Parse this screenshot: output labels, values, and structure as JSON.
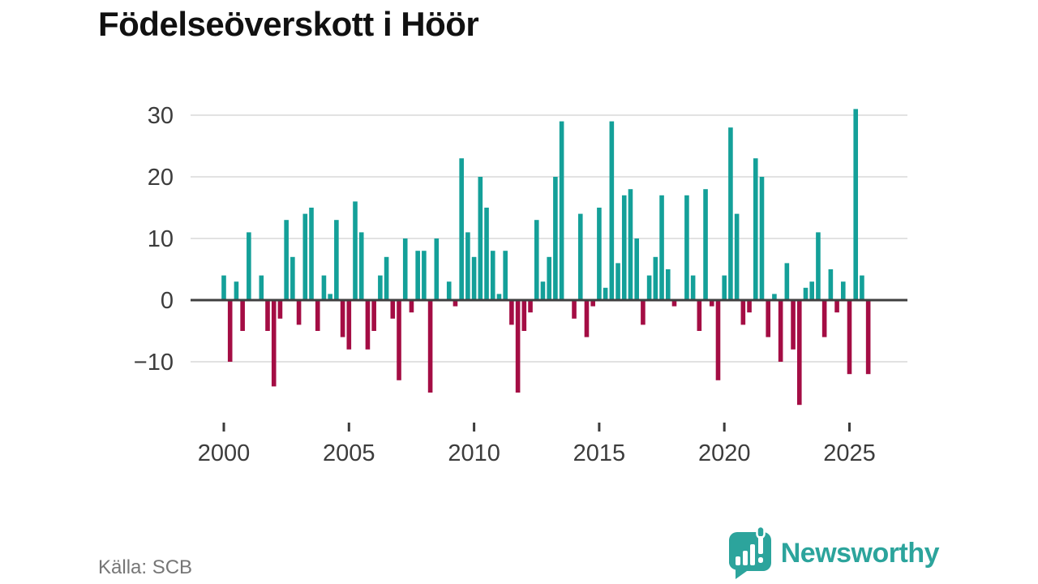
{
  "title": "Födelseöverskott i Höör",
  "source": "Källa: SCB",
  "brand": {
    "name": "Newsworthy",
    "color": "#2ca49c",
    "icon": "speech-bubble-bar-chart-exclamation"
  },
  "chart_data": {
    "type": "bar",
    "title": "Födelseöverskott i Höör",
    "frequency": "quarterly",
    "x_start_year": 2000,
    "x_start_quarter": 1,
    "values": [
      4,
      -10,
      3,
      -5,
      11,
      0,
      4,
      -5,
      -14,
      -3,
      13,
      7,
      -4,
      14,
      15,
      -5,
      4,
      1,
      13,
      -6,
      -8,
      16,
      11,
      -8,
      -5,
      4,
      7,
      -3,
      -13,
      10,
      -2,
      8,
      8,
      -15,
      10,
      0,
      3,
      -1,
      23,
      11,
      7,
      20,
      15,
      8,
      1,
      8,
      -4,
      -15,
      -5,
      -2,
      13,
      3,
      7,
      20,
      29,
      0,
      -3,
      14,
      -6,
      -1,
      15,
      2,
      29,
      6,
      17,
      18,
      10,
      -4,
      4,
      7,
      17,
      5,
      -1,
      0,
      17,
      4,
      -5,
      18,
      -1,
      -13,
      4,
      28,
      14,
      -4,
      -2,
      23,
      20,
      -6,
      1,
      -10,
      6,
      -8,
      -17,
      2,
      3,
      11,
      -6,
      5,
      -2,
      3,
      -12,
      31,
      4,
      -12
    ],
    "xticks": [
      2000,
      2005,
      2010,
      2015,
      2020,
      2025
    ],
    "yticks": [
      -10,
      0,
      10,
      20,
      30
    ],
    "ylim": [
      -17,
      31
    ],
    "positive_color": "#14a099",
    "negative_color": "#a40d44",
    "grid": true,
    "legend": "none",
    "axis_text_color": "#3c3c3c",
    "gridline_color": "#e2e2e2",
    "zero_line_color": "#3f3f3f"
  }
}
